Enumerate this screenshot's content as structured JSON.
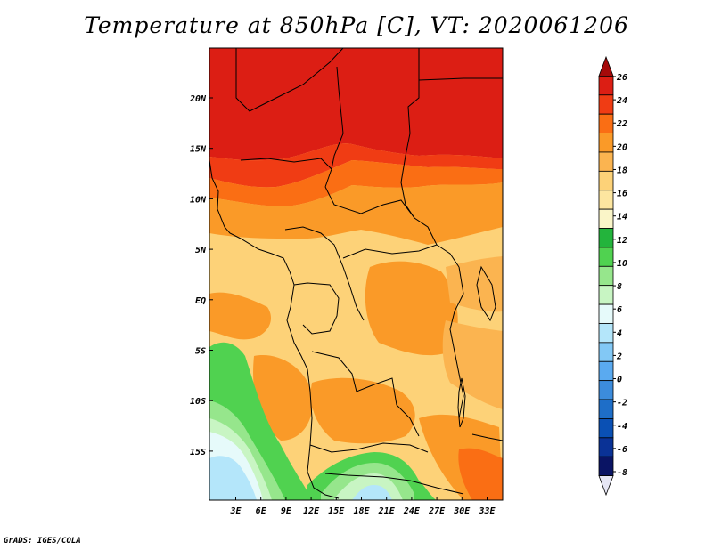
{
  "title": "Temperature at 850hPa [C], VT: 2020061206",
  "credit": "GrADS: IGES/COLA",
  "map": {
    "lat_labels": [
      "20N",
      "15N",
      "10N",
      "5N",
      "EQ",
      "5S",
      "10S",
      "15S"
    ],
    "lon_labels": [
      "3E",
      "6E",
      "9E",
      "12E",
      "15E",
      "18E",
      "21E",
      "24E",
      "27E",
      "30E",
      "33E"
    ]
  },
  "colorbar": {
    "labels": [
      "26",
      "24",
      "22",
      "20",
      "18",
      "16",
      "14",
      "12",
      "10",
      "8",
      "6",
      "4",
      "2",
      "0",
      "-2",
      "-4",
      "-6",
      "-8"
    ],
    "colors": [
      "#a50a0a",
      "#dc1e14",
      "#f03c14",
      "#fa6e14",
      "#fa9a28",
      "#fbb450",
      "#fdd278",
      "#fde6a0",
      "#faf5c8",
      "#23b43c",
      "#50d250",
      "#96e68c",
      "#c8f5c3",
      "#e6fafa",
      "#b4e6fa",
      "#82c8f5",
      "#5aaaf0",
      "#3c8cdc",
      "#1e6ec8",
      "#0a50b4",
      "#0a3296",
      "#0a1464",
      "#e6e6f5"
    ]
  },
  "field": {
    "palette": {
      "c26": "#dc1e14",
      "c24": "#f03c14",
      "c22": "#fa6e14",
      "c20": "#fa9a28",
      "c18": "#fbb450",
      "c16": "#fdd278",
      "c14": "#fde6a0",
      "c10": "#50d250",
      "c8": "#96e68c",
      "c6": "#c8f5c3",
      "c4": "#e6fafa",
      "c2": "#b4e6fa"
    }
  }
}
